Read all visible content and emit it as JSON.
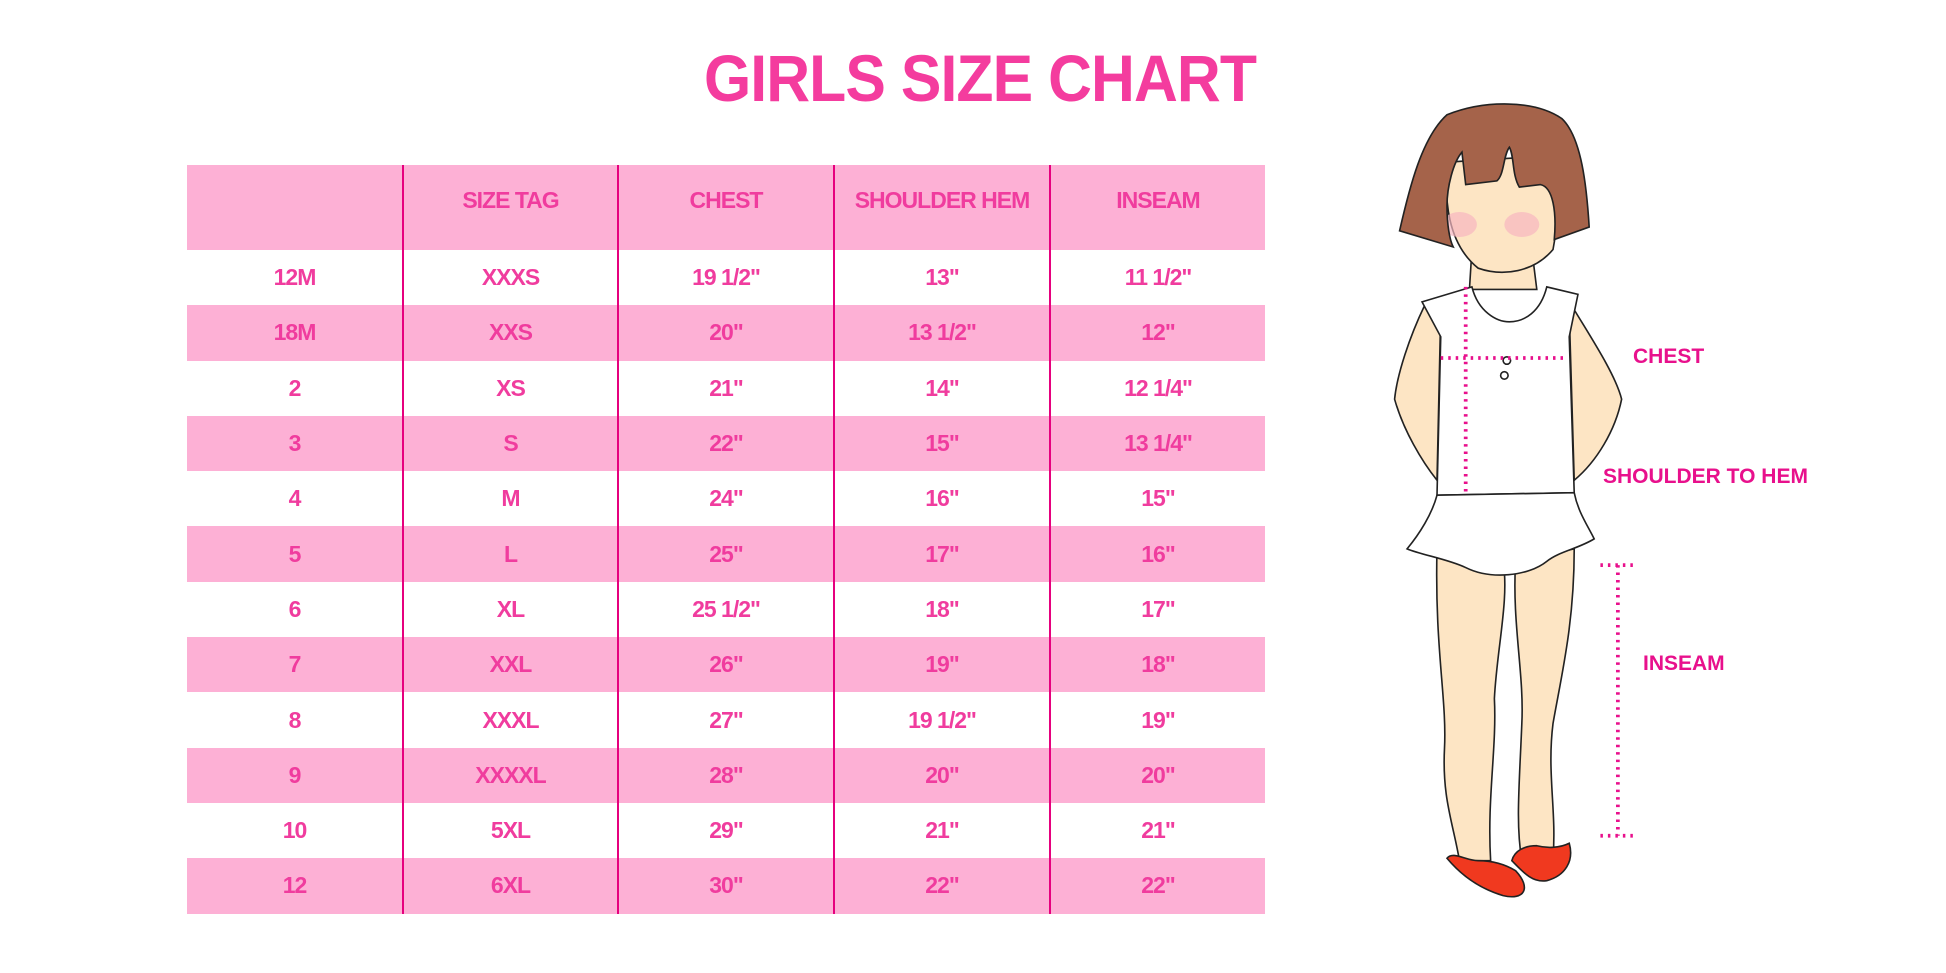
{
  "title": "GIRLS SIZE CHART",
  "table": {
    "headers": [
      "",
      "SIZE TAG",
      "CHEST",
      "SHOULDER HEM",
      "INSEAM"
    ],
    "rows": [
      [
        "12M",
        "XXXS",
        "19 1/2\"",
        "13\"",
        "11 1/2\""
      ],
      [
        "18M",
        "XXS",
        "20\"",
        "13 1/2\"",
        "12\""
      ],
      [
        "2",
        "XS",
        "21\"",
        "14\"",
        "12 1/4\""
      ],
      [
        "3",
        "S",
        "22\"",
        "15\"",
        "13 1/4\""
      ],
      [
        "4",
        "M",
        "24\"",
        "16\"",
        "15\""
      ],
      [
        "5",
        "L",
        "25\"",
        "17\"",
        "16\""
      ],
      [
        "6",
        "XL",
        "25 1/2\"",
        "18\"",
        "17\""
      ],
      [
        "7",
        "XXL",
        "26\"",
        "19\"",
        "18\""
      ],
      [
        "8",
        "XXXL",
        "27\"",
        "19 1/2\"",
        "19\""
      ],
      [
        "9",
        "XXXXL",
        "28\"",
        "20\"",
        "20\""
      ],
      [
        "10",
        "5XL",
        "29\"",
        "21\"",
        "21\""
      ],
      [
        "12",
        "6XL",
        "30\"",
        "22\"",
        "22\""
      ]
    ]
  },
  "figure": {
    "labels": {
      "chest": "CHEST",
      "shoulder_to_hem": "SHOULDER TO HEM",
      "inseam": "INSEAM"
    }
  },
  "colors": {
    "pink_text": "#f03c9e",
    "stripe": "#fdb0d5",
    "divider": "#e6007e",
    "measure": "#e8108c"
  }
}
